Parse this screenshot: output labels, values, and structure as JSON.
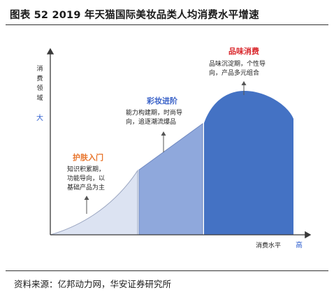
{
  "title": "图表 52 2019 年天猫国际美妆品类人均消费水平增速",
  "axes": {
    "y_label_chars": [
      "消",
      "费",
      "领",
      "域"
    ],
    "y_marker": "大",
    "x_label": "消费水平",
    "x_marker": "高"
  },
  "stages": [
    {
      "name": "护肤入门",
      "lines": [
        "知识积累期，",
        "功能导向，以",
        "基础产品为主"
      ],
      "color": "#dce3f2",
      "name_color": "#e8752c"
    },
    {
      "name": "彩妆进阶",
      "lines": [
        "能力构建期，时尚导",
        "向，追逐潮流爆品"
      ],
      "color": "#8fa8dc",
      "name_color": "#3a62c8"
    },
    {
      "name": "品味消费",
      "lines": [
        "品味沉淀期，个性导",
        "向，产品多元组合"
      ],
      "color": "#4472c4",
      "name_color": "#d9262b"
    }
  ],
  "source": "资料来源：亿邦动力网，华安证券研究所",
  "colors": {
    "axis": "#3a3a3a",
    "text": "#222222",
    "marker_blue": "#2f5fcf",
    "arrow": "#555555"
  }
}
